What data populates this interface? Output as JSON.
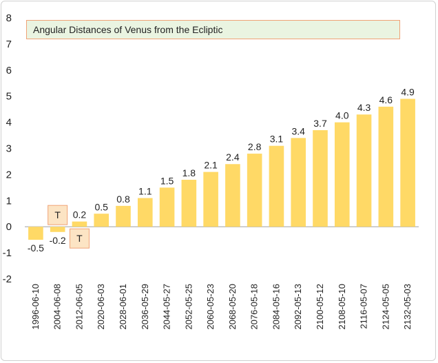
{
  "chart_data": {
    "type": "bar",
    "title": "Angular Distances of Venus from the Ecliptic",
    "xlabel": "",
    "ylabel": "",
    "ylim": [
      -2,
      8
    ],
    "yticks": [
      -2,
      -1,
      0,
      1,
      2,
      3,
      4,
      5,
      6,
      7,
      8
    ],
    "grid": false,
    "categories": [
      "1996-06-10",
      "2004-06-08",
      "2012-06-05",
      "2020-06-03",
      "2028-06-01",
      "2036-05-29",
      "2044-05-27",
      "2052-05-25",
      "2060-05-23",
      "2068-05-20",
      "2076-05-18",
      "2084-05-16",
      "2092-05-13",
      "2100-05-12",
      "2108-05-10",
      "2116-05-07",
      "2124-05-05",
      "2132-05-03"
    ],
    "values": [
      -0.5,
      -0.2,
      0.2,
      0.5,
      0.8,
      1.1,
      1.5,
      1.8,
      2.1,
      2.4,
      2.8,
      3.1,
      3.4,
      3.7,
      4.0,
      4.3,
      4.6,
      4.9
    ],
    "data_labels": [
      "-0.5",
      "-0.2",
      "0.2",
      "0.5",
      "0.8",
      "1.1",
      "1.5",
      "1.8",
      "2.1",
      "2.4",
      "2.8",
      "3.1",
      "3.4",
      "3.7",
      "4.0",
      "4.3",
      "4.6",
      "4.9"
    ],
    "annotations": [
      {
        "category": "2004-06-08",
        "text": "T",
        "placement": "above"
      },
      {
        "category": "2012-06-05",
        "text": "T",
        "placement": "below"
      }
    ],
    "colors": {
      "bar": "#ffd966",
      "zero_line": "#bfbfbf",
      "annotation_fill": "#fce4c4",
      "annotation_border": "#f0a276",
      "title_fill": "#eaf4e1",
      "title_border": "#f0a276"
    }
  }
}
